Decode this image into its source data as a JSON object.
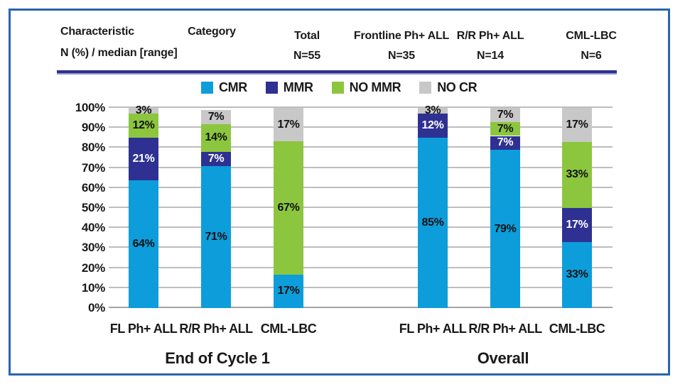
{
  "header": {
    "row_label_line1": "Characteristic",
    "row_label_line2": "N (%) / median [range]",
    "category_label": "Category",
    "columns": [
      {
        "label": "Total",
        "n": "N=55"
      },
      {
        "label": "Frontline Ph+ ALL",
        "n": "N=35"
      },
      {
        "label": "R/R Ph+ ALL",
        "n": "N=14"
      },
      {
        "label": "CML-LBC",
        "n": "N=6"
      }
    ]
  },
  "chart_data": {
    "type": "bar",
    "stacked": true,
    "unit": "%",
    "ylim": [
      0,
      100
    ],
    "y_ticks": [
      "0%",
      "10%",
      "20%",
      "30%",
      "40%",
      "50%",
      "60%",
      "70%",
      "80%",
      "90%",
      "100%"
    ],
    "grid": true,
    "legend": [
      "CMR",
      "MMR",
      "NO MMR",
      "NO CR"
    ],
    "legend_position": "top-center",
    "colors": {
      "CMR": "#0d9ddb",
      "MMR": "#2e3192",
      "NO MMR": "#8cc63e",
      "NO CR": "#c8c8c8"
    },
    "label_text_colors": {
      "CMR": "#111111",
      "MMR": "#ffffff",
      "NO MMR": "#111111",
      "NO CR": "#111111"
    },
    "groups": [
      {
        "label": "End of Cycle 1",
        "categories": [
          "FL Ph+ ALL",
          "R/R Ph+ ALL",
          "CML-LBC"
        ],
        "series": [
          {
            "name": "CMR",
            "values": [
              64,
              71,
              17
            ]
          },
          {
            "name": "MMR",
            "values": [
              21,
              7,
              0
            ]
          },
          {
            "name": "NO MMR",
            "values": [
              12,
              14,
              67
            ]
          },
          {
            "name": "NO CR",
            "values": [
              3,
              7,
              17
            ]
          }
        ]
      },
      {
        "label": "Overall",
        "categories": [
          "FL Ph+ ALL",
          "R/R Ph+ ALL",
          "CML-LBC"
        ],
        "series": [
          {
            "name": "CMR",
            "values": [
              85,
              79,
              33
            ]
          },
          {
            "name": "MMR",
            "values": [
              12,
              7,
              17
            ]
          },
          {
            "name": "NO MMR",
            "values": [
              0,
              7,
              33
            ]
          },
          {
            "name": "NO CR",
            "values": [
              3,
              7,
              17
            ]
          }
        ]
      }
    ]
  },
  "frame": {
    "border_color": "#2b64ae",
    "rule_color": "#2e3192"
  }
}
